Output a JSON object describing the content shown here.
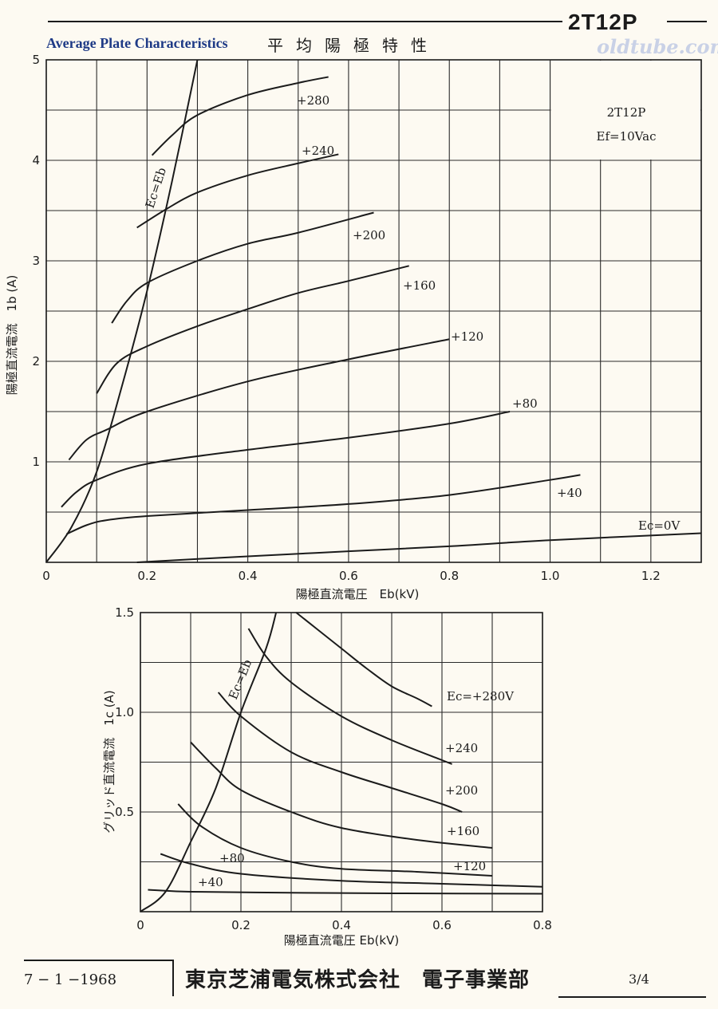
{
  "header": {
    "model": "2T12P",
    "subtitle_en": "Average Plate Characteristics",
    "subtitle_jp": "平均陽極特性",
    "watermark": "oldtube.com"
  },
  "footer": {
    "date": "7 − 1 −1968",
    "company": "東京芝浦電気株式会社　電子事業部",
    "page": "3/4"
  },
  "colors": {
    "ink": "#1b1b1b",
    "grid": "#2a2a2a",
    "subtitle": "#1e3a86",
    "paper": "#fdfaf2"
  },
  "chart_data": [
    {
      "type": "line",
      "title": "",
      "note_lines": [
        "2T12P",
        "Ef=10Vac"
      ],
      "xlabel": "陽極直流電圧　Eb(kV)",
      "ylabel": "陽極直流電流　1b (A)",
      "xlim": [
        0,
        1.3
      ],
      "ylim": [
        0,
        5
      ],
      "x_ticks": [
        0,
        0.2,
        0.4,
        0.6,
        0.8,
        1.0,
        1.2
      ],
      "x_tick_labels": [
        "0",
        "0.2",
        "0.4",
        "0.6",
        "0.8",
        "1.0",
        "1.2"
      ],
      "y_ticks": [
        1,
        2,
        3,
        4,
        5
      ],
      "y_tick_labels": [
        "1",
        "2",
        "3",
        "4",
        "5"
      ],
      "grid": true,
      "series": [
        {
          "name": "Ec=0V",
          "x": [
            0.18,
            0.4,
            0.6,
            0.8,
            1.0,
            1.3
          ],
          "y": [
            0.0,
            0.06,
            0.11,
            0.16,
            0.22,
            0.29
          ]
        },
        {
          "name": "+40",
          "x": [
            0.04,
            0.08,
            0.12,
            0.2,
            0.4,
            0.6,
            0.8,
            1.0,
            1.06
          ],
          "y": [
            0.28,
            0.37,
            0.42,
            0.46,
            0.52,
            0.58,
            0.67,
            0.82,
            0.87
          ]
        },
        {
          "name": "+80",
          "x": [
            0.03,
            0.06,
            0.1,
            0.2,
            0.4,
            0.6,
            0.8,
            0.92
          ],
          "y": [
            0.55,
            0.7,
            0.82,
            0.98,
            1.12,
            1.24,
            1.38,
            1.5
          ]
        },
        {
          "name": "+120",
          "x": [
            0.045,
            0.08,
            0.12,
            0.2,
            0.4,
            0.6,
            0.8
          ],
          "y": [
            1.02,
            1.22,
            1.32,
            1.5,
            1.8,
            2.02,
            2.22
          ]
        },
        {
          "name": "+160",
          "x": [
            0.1,
            0.14,
            0.2,
            0.3,
            0.4,
            0.5,
            0.6,
            0.72
          ],
          "y": [
            1.68,
            1.98,
            2.15,
            2.35,
            2.52,
            2.68,
            2.8,
            2.95
          ]
        },
        {
          "name": "+200",
          "x": [
            0.13,
            0.16,
            0.2,
            0.3,
            0.4,
            0.5,
            0.65
          ],
          "y": [
            2.38,
            2.6,
            2.78,
            3.0,
            3.17,
            3.28,
            3.48
          ]
        },
        {
          "name": "+240",
          "x": [
            0.18,
            0.24,
            0.3,
            0.4,
            0.5,
            0.58
          ],
          "y": [
            3.33,
            3.52,
            3.68,
            3.85,
            3.97,
            4.06
          ]
        },
        {
          "name": "+280",
          "x": [
            0.21,
            0.25,
            0.3,
            0.4,
            0.5,
            0.56
          ],
          "y": [
            4.05,
            4.25,
            4.45,
            4.65,
            4.77,
            4.83
          ]
        },
        {
          "name": "Ec=Eb",
          "x": [
            0.0,
            0.05,
            0.1,
            0.15,
            0.2,
            0.25,
            0.3
          ],
          "y": [
            0.0,
            0.35,
            0.9,
            1.75,
            2.7,
            3.8,
            5.0
          ]
        }
      ]
    },
    {
      "type": "line",
      "title": "",
      "xlabel": "陽極直流電圧 Eb(kV)",
      "ylabel": "グリッド直流電流　1c (A)",
      "xlim": [
        0,
        0.8
      ],
      "ylim": [
        0,
        1.5
      ],
      "x_ticks": [
        0,
        0.2,
        0.4,
        0.6,
        0.8
      ],
      "x_tick_labels": [
        "0",
        "0.2",
        "0.4",
        "0.6",
        "0.8"
      ],
      "y_ticks": [
        0.5,
        1.0,
        1.5
      ],
      "y_tick_labels": [
        "0.5",
        "1.0",
        "1.5"
      ],
      "grid": true,
      "series": [
        {
          "name": "+40",
          "x": [
            0.015,
            0.1,
            0.3,
            0.5,
            0.8
          ],
          "y": [
            0.11,
            0.1,
            0.095,
            0.092,
            0.09
          ]
        },
        {
          "name": "+80",
          "x": [
            0.04,
            0.1,
            0.2,
            0.4,
            0.6,
            0.8
          ],
          "y": [
            0.29,
            0.24,
            0.19,
            0.155,
            0.14,
            0.125
          ]
        },
        {
          "name": "+120",
          "x": [
            0.075,
            0.12,
            0.2,
            0.3,
            0.4,
            0.55,
            0.7
          ],
          "y": [
            0.54,
            0.43,
            0.32,
            0.25,
            0.215,
            0.2,
            0.18
          ]
        },
        {
          "name": "+160",
          "x": [
            0.1,
            0.15,
            0.2,
            0.3,
            0.4,
            0.55,
            0.7
          ],
          "y": [
            0.85,
            0.72,
            0.61,
            0.5,
            0.42,
            0.36,
            0.32
          ]
        },
        {
          "name": "+200",
          "x": [
            0.155,
            0.2,
            0.3,
            0.4,
            0.5,
            0.6,
            0.64
          ],
          "y": [
            1.1,
            0.98,
            0.8,
            0.7,
            0.62,
            0.54,
            0.5
          ]
        },
        {
          "name": "+240",
          "x": [
            0.215,
            0.25,
            0.3,
            0.4,
            0.5,
            0.6,
            0.62
          ],
          "y": [
            1.42,
            1.28,
            1.15,
            0.98,
            0.86,
            0.76,
            0.74
          ]
        },
        {
          "name": "Ec=+280V",
          "x": [
            0.31,
            0.35,
            0.4,
            0.45,
            0.5,
            0.55,
            0.58
          ],
          "y": [
            1.5,
            1.42,
            1.32,
            1.22,
            1.13,
            1.07,
            1.03
          ]
        },
        {
          "name": "Ec=Eb",
          "x": [
            0.0,
            0.05,
            0.1,
            0.15,
            0.2,
            0.25,
            0.27
          ],
          "y": [
            0.0,
            0.1,
            0.35,
            0.62,
            1.0,
            1.32,
            1.5
          ]
        }
      ]
    }
  ]
}
